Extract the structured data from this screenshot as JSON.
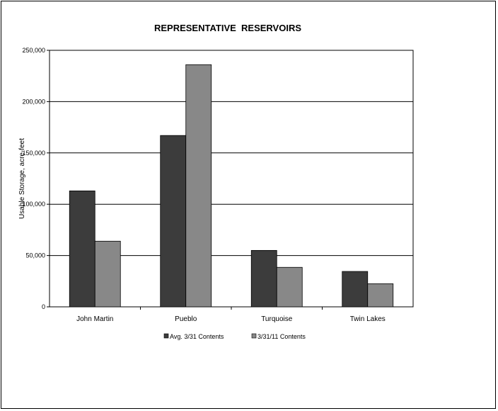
{
  "chart_data": {
    "type": "bar",
    "title": "REPRESENTATIVE  RESERVOIRS",
    "xlabel": "",
    "ylabel": "Usable Storage, acre-feet",
    "categories": [
      "John Martin",
      "Pueblo",
      "Turquoise",
      "Twin Lakes"
    ],
    "series": [
      {
        "name": "Avg. 3/31 Contents",
        "values": [
          113000,
          167000,
          55000,
          34500
        ],
        "color": "#3c3c3c"
      },
      {
        "name": "3/31/11 Contents",
        "values": [
          64000,
          236000,
          38500,
          22500
        ],
        "color": "#888888"
      }
    ],
    "ylim": [
      0,
      250000
    ],
    "yticks": [
      0,
      50000,
      100000,
      150000,
      200000,
      250000
    ],
    "ytick_labels": [
      "0",
      "50,000",
      "100,000",
      "150,000",
      "200,000",
      "250,000"
    ],
    "grid": true,
    "legend_position": "bottom"
  }
}
